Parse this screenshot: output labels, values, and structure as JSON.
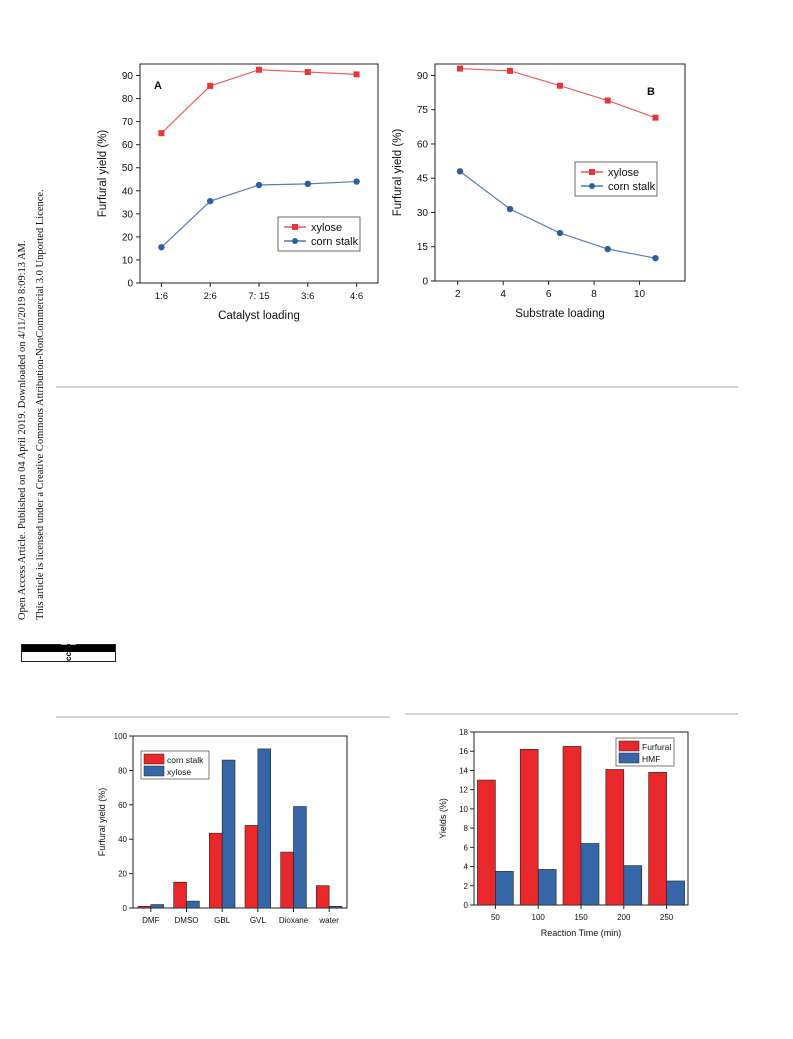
{
  "sidebar": {
    "line1": "Open Access Article. Published on 04 April 2019. Downloaded on 4/11/2019 8:09:13 AM.",
    "line2": "This article is licensed under a Creative Commons Attribution-NonCommercial 3.0 Unported Licence.",
    "badge_cc": "cc",
    "badge_license": "BY-NC"
  },
  "chart_data": [
    {
      "type": "line",
      "panel_label": "A",
      "xlabel": "Catalyst loading",
      "ylabel": "Furfural yield (%)",
      "categories": [
        "1:6",
        "2:6",
        "7: 15",
        "3:6",
        "4:6"
      ],
      "ylim": [
        0,
        95
      ],
      "yticks": [
        0,
        10,
        20,
        30,
        40,
        50,
        60,
        70,
        80,
        90
      ],
      "series": [
        {
          "name": "xylose",
          "color": "#e8353a",
          "marker": "square",
          "values": [
            65,
            85.5,
            92.5,
            91.5,
            90.5
          ]
        },
        {
          "name": "corn stalk",
          "color": "#2f5e9e",
          "marker": "circle",
          "values": [
            15.5,
            35.5,
            42.5,
            43,
            44
          ]
        }
      ],
      "legend": "middle-right",
      "grid": false
    },
    {
      "type": "line",
      "panel_label": "B",
      "xlabel": "Substrate loading",
      "ylabel": "Furfural yield (%)",
      "x": [
        2.1,
        4.3,
        6.5,
        8.6,
        10.7
      ],
      "xlim": [
        1,
        12
      ],
      "xticks": [
        2,
        4,
        6,
        8,
        10
      ],
      "ylim": [
        0,
        95
      ],
      "yticks": [
        0,
        15,
        30,
        45,
        60,
        75,
        90
      ],
      "series": [
        {
          "name": "xylose",
          "color": "#e8353a",
          "marker": "square",
          "values": [
            93,
            92,
            85.5,
            79,
            71.5
          ]
        },
        {
          "name": "corn stalk",
          "color": "#2f5e9e",
          "marker": "circle",
          "values": [
            48,
            31.5,
            21,
            14,
            10
          ]
        }
      ],
      "legend": "middle-right",
      "grid": false
    },
    {
      "type": "bar",
      "ylabel": "Furfural yield (%)",
      "categories": [
        "DMF",
        "DMSO",
        "GBL",
        "GVL",
        "Dioxane",
        "water"
      ],
      "ylim": [
        0,
        100
      ],
      "yticks": [
        0,
        20,
        40,
        60,
        80,
        100
      ],
      "series": [
        {
          "name": "corn stalk",
          "color": "#e8282a",
          "values": [
            1,
            15,
            43.5,
            48,
            32.5,
            13
          ]
        },
        {
          "name": "xylose",
          "color": "#3666a8",
          "values": [
            2,
            4,
            86,
            92.5,
            59,
            1
          ]
        }
      ],
      "legend": "top-left",
      "grid": false
    },
    {
      "type": "bar",
      "xlabel": "Reaction Time (min)",
      "ylabel": "Yields (%)",
      "categories": [
        "50",
        "100",
        "150",
        "200",
        "250"
      ],
      "ylim": [
        0,
        18
      ],
      "yticks": [
        0,
        2,
        4,
        6,
        8,
        10,
        12,
        14,
        16,
        18
      ],
      "series": [
        {
          "name": "Furfural",
          "color": "#e8282a",
          "values": [
            13,
            16.2,
            16.5,
            14.1,
            13.8
          ]
        },
        {
          "name": "HMF",
          "color": "#3666a8",
          "values": [
            3.5,
            3.7,
            6.4,
            4.1,
            2.5
          ]
        }
      ],
      "legend": "top-right",
      "grid": false
    }
  ]
}
